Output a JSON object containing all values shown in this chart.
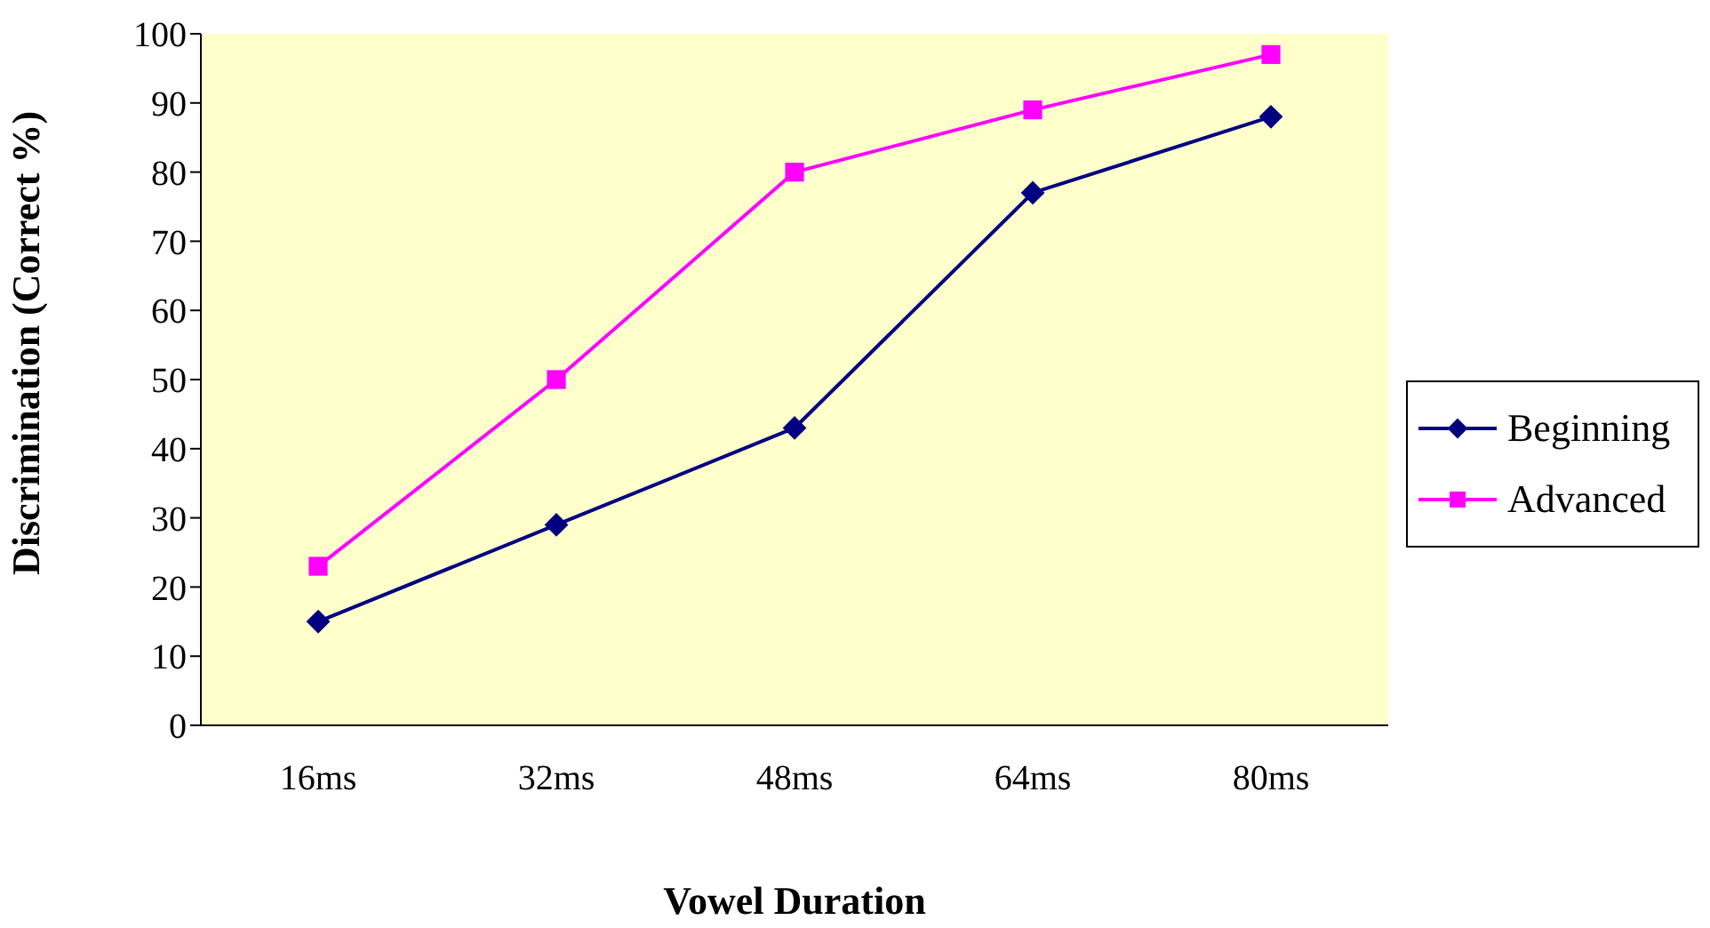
{
  "chart_data": {
    "type": "line",
    "xlabel": "Vowel Duration",
    "ylabel": "Discrimination (Correct %)",
    "categories": [
      "16ms",
      "32ms",
      "48ms",
      "64ms",
      "80ms"
    ],
    "series": [
      {
        "name": "Beginning",
        "color": "#000080",
        "marker": "diamond",
        "values": [
          15,
          29,
          43,
          77,
          88
        ]
      },
      {
        "name": "Advanced",
        "color": "#ff00ff",
        "marker": "square",
        "values": [
          23,
          50,
          80,
          89,
          97
        ]
      }
    ],
    "ylim": [
      0,
      100
    ],
    "yticks": [
      0,
      10,
      20,
      30,
      40,
      50,
      60,
      70,
      80,
      90,
      100
    ],
    "grid": false,
    "legend": "right"
  }
}
